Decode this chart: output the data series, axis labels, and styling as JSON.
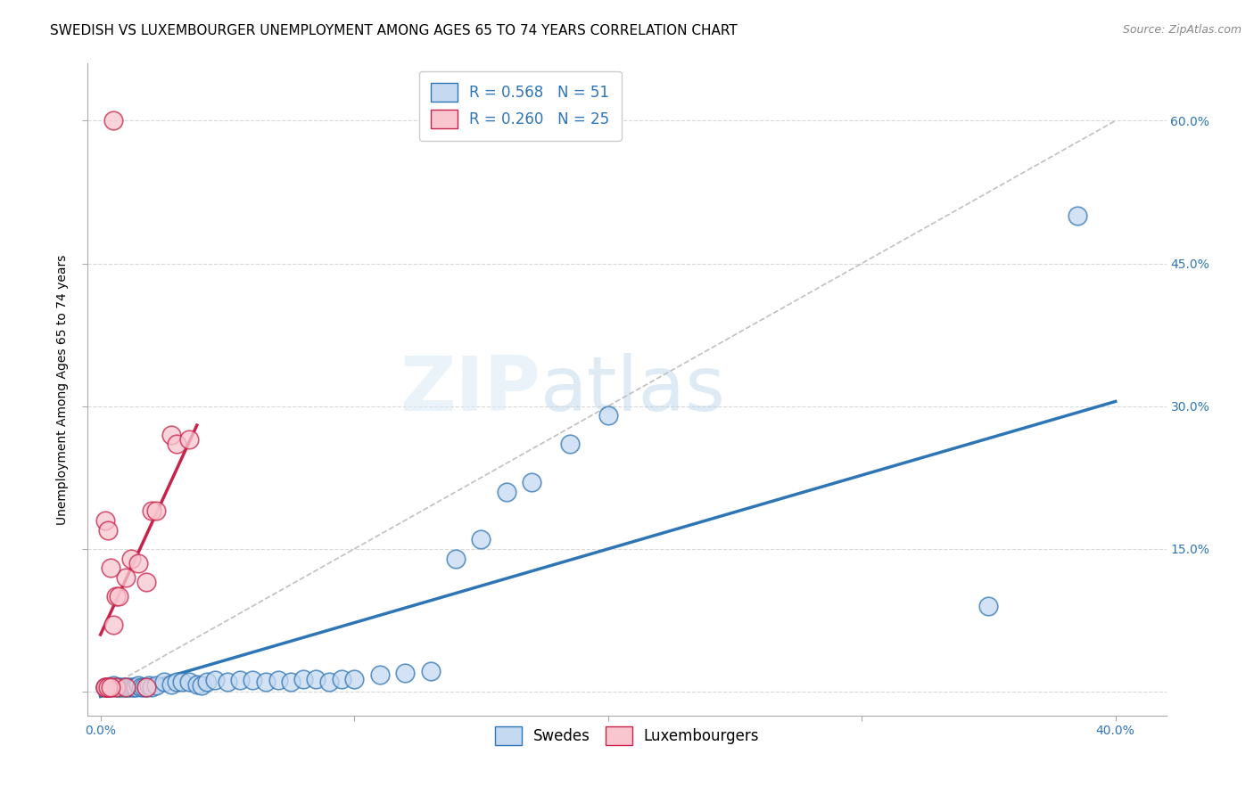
{
  "title": "SWEDISH VS LUXEMBOURGER UNEMPLOYMENT AMONG AGES 65 TO 74 YEARS CORRELATION CHART",
  "source": "Source: ZipAtlas.com",
  "ylabel": "Unemployment Among Ages 65 to 74 years",
  "swedes_scatter": [
    [
      0.002,
      0.005
    ],
    [
      0.003,
      0.005
    ],
    [
      0.004,
      0.005
    ],
    [
      0.005,
      0.007
    ],
    [
      0.006,
      0.005
    ],
    [
      0.007,
      0.005
    ],
    [
      0.008,
      0.005
    ],
    [
      0.009,
      0.005
    ],
    [
      0.01,
      0.005
    ],
    [
      0.011,
      0.005
    ],
    [
      0.012,
      0.005
    ],
    [
      0.013,
      0.005
    ],
    [
      0.014,
      0.005
    ],
    [
      0.015,
      0.007
    ],
    [
      0.016,
      0.005
    ],
    [
      0.017,
      0.005
    ],
    [
      0.018,
      0.005
    ],
    [
      0.019,
      0.007
    ],
    [
      0.02,
      0.005
    ],
    [
      0.022,
      0.007
    ],
    [
      0.025,
      0.01
    ],
    [
      0.028,
      0.008
    ],
    [
      0.03,
      0.01
    ],
    [
      0.032,
      0.01
    ],
    [
      0.035,
      0.01
    ],
    [
      0.038,
      0.008
    ],
    [
      0.04,
      0.007
    ],
    [
      0.042,
      0.01
    ],
    [
      0.045,
      0.012
    ],
    [
      0.05,
      0.01
    ],
    [
      0.055,
      0.012
    ],
    [
      0.06,
      0.012
    ],
    [
      0.065,
      0.01
    ],
    [
      0.07,
      0.012
    ],
    [
      0.075,
      0.01
    ],
    [
      0.08,
      0.013
    ],
    [
      0.085,
      0.013
    ],
    [
      0.09,
      0.01
    ],
    [
      0.095,
      0.013
    ],
    [
      0.1,
      0.013
    ],
    [
      0.11,
      0.018
    ],
    [
      0.12,
      0.02
    ],
    [
      0.13,
      0.022
    ],
    [
      0.14,
      0.14
    ],
    [
      0.15,
      0.16
    ],
    [
      0.16,
      0.21
    ],
    [
      0.17,
      0.22
    ],
    [
      0.185,
      0.26
    ],
    [
      0.2,
      0.29
    ],
    [
      0.35,
      0.09
    ],
    [
      0.385,
      0.5
    ]
  ],
  "luxembourgers_scatter": [
    [
      0.002,
      0.005
    ],
    [
      0.003,
      0.005
    ],
    [
      0.004,
      0.005
    ],
    [
      0.005,
      0.07
    ],
    [
      0.006,
      0.1
    ],
    [
      0.007,
      0.1
    ],
    [
      0.01,
      0.12
    ],
    [
      0.012,
      0.14
    ],
    [
      0.015,
      0.135
    ],
    [
      0.018,
      0.115
    ],
    [
      0.02,
      0.19
    ],
    [
      0.022,
      0.19
    ],
    [
      0.028,
      0.27
    ],
    [
      0.03,
      0.26
    ],
    [
      0.035,
      0.265
    ],
    [
      0.005,
      0.6
    ],
    [
      0.002,
      0.18
    ],
    [
      0.003,
      0.17
    ],
    [
      0.004,
      0.13
    ],
    [
      0.006,
      0.005
    ],
    [
      0.01,
      0.005
    ],
    [
      0.018,
      0.005
    ],
    [
      0.002,
      0.005
    ],
    [
      0.003,
      0.005
    ],
    [
      0.004,
      0.005
    ]
  ],
  "swedes_line": {
    "x0": 0.0,
    "y0": -0.005,
    "x1": 0.4,
    "y1": 0.305
  },
  "luxembourgers_line": {
    "x0": 0.0,
    "y0": 0.06,
    "x1": 0.038,
    "y1": 0.28
  },
  "diagonal_line": {
    "x0": 0.0,
    "y0": 0.0,
    "x1": 0.4,
    "y1": 0.6
  },
  "scatter_color_swedes": "#c5d9f1",
  "scatter_color_luxembourgers": "#f9c6d0",
  "line_color_swedes": "#2e75b6",
  "line_color_luxembourgers": "#c9224a",
  "diagonal_color": "#c0c0c0",
  "background_color": "#ffffff",
  "title_fontsize": 11,
  "axis_label_fontsize": 10,
  "tick_fontsize": 10,
  "watermark_zip": "ZIP",
  "watermark_atlas": "atlas",
  "xlim": [
    -0.005,
    0.42
  ],
  "ylim": [
    -0.025,
    0.66
  ]
}
